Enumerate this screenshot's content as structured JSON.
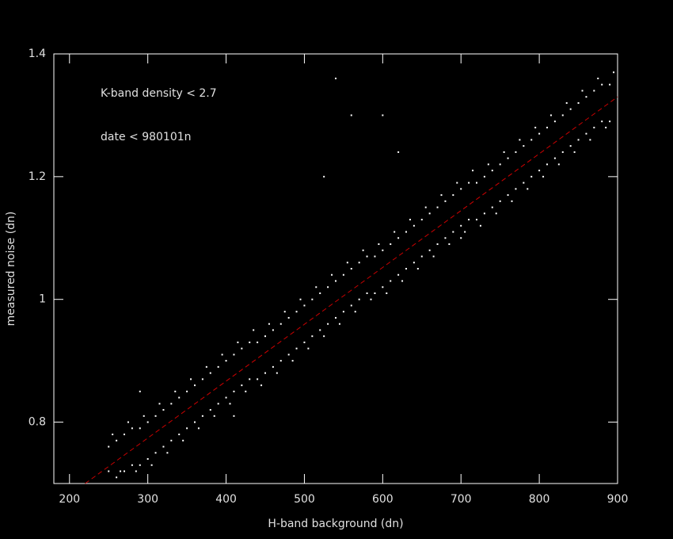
{
  "chart_data": {
    "type": "scatter",
    "xlabel": "H-band background (dn)",
    "ylabel": "measured noise (dn)",
    "annotations": [
      "K-band density < 2.7",
      "date < 980101n"
    ],
    "xlim": [
      180,
      900
    ],
    "ylim": [
      0.7,
      1.4
    ],
    "xticks": [
      200,
      300,
      400,
      500,
      600,
      700,
      800,
      900
    ],
    "yticks": [
      0.8,
      1,
      1.2,
      1.4
    ],
    "fit_line": {
      "x": [
        220,
        900
      ],
      "y": [
        0.7,
        1.33
      ],
      "color": "#cc0000"
    },
    "series": [
      {
        "color": "#ffffff",
        "x": [
          250,
          260,
          270,
          280,
          290,
          300,
          310,
          320,
          330,
          340,
          350,
          360,
          370,
          380,
          390,
          400,
          410,
          420,
          430,
          440,
          450,
          460,
          470,
          480,
          490,
          500,
          510,
          520,
          530,
          540,
          550,
          560,
          570,
          580,
          590,
          600,
          610,
          620,
          630,
          640,
          650,
          660,
          670,
          680,
          690,
          700,
          710,
          720,
          730,
          740,
          750,
          760,
          770,
          780,
          790,
          800,
          810,
          820,
          830,
          840,
          850,
          860,
          870,
          880,
          890
        ],
        "y": [
          0.76,
          0.77,
          0.78,
          0.79,
          0.79,
          0.8,
          0.81,
          0.82,
          0.83,
          0.84,
          0.85,
          0.86,
          0.87,
          0.88,
          0.89,
          0.9,
          0.91,
          0.92,
          0.93,
          0.93,
          0.94,
          0.95,
          0.96,
          0.97,
          0.98,
          0.99,
          1.0,
          1.01,
          1.02,
          1.03,
          1.04,
          1.05,
          1.06,
          1.07,
          1.07,
          1.08,
          1.09,
          1.1,
          1.11,
          1.12,
          1.13,
          1.14,
          1.15,
          1.16,
          1.17,
          1.18,
          1.19,
          1.19,
          1.2,
          1.21,
          1.22,
          1.23,
          1.24,
          1.25,
          1.26,
          1.27,
          1.28,
          1.29,
          1.3,
          1.31,
          1.32,
          1.33,
          1.34,
          1.35,
          1.35
        ]
      },
      {
        "color": "#ffffff",
        "x": [
          250,
          260,
          270,
          280,
          290,
          300,
          310,
          320,
          330,
          340,
          350,
          360,
          370,
          380,
          390,
          400,
          410,
          420,
          430,
          440,
          450,
          460,
          470,
          480,
          490,
          500,
          510,
          520,
          530,
          540,
          550,
          560,
          570,
          580,
          590,
          600,
          610,
          620,
          630,
          640,
          650,
          660,
          670,
          680,
          690,
          700,
          710,
          720,
          730,
          740,
          750,
          760,
          770,
          780,
          790,
          800,
          810,
          820,
          830,
          840,
          850,
          860,
          870,
          880,
          890
        ],
        "y": [
          0.72,
          0.71,
          0.72,
          0.73,
          0.73,
          0.74,
          0.75,
          0.76,
          0.77,
          0.78,
          0.79,
          0.8,
          0.81,
          0.82,
          0.83,
          0.84,
          0.85,
          0.86,
          0.87,
          0.87,
          0.88,
          0.89,
          0.9,
          0.91,
          0.92,
          0.93,
          0.94,
          0.95,
          0.96,
          0.97,
          0.98,
          0.99,
          1.0,
          1.01,
          1.01,
          1.02,
          1.03,
          1.04,
          1.05,
          1.06,
          1.07,
          1.08,
          1.09,
          1.1,
          1.11,
          1.12,
          1.13,
          1.13,
          1.14,
          1.15,
          1.16,
          1.17,
          1.18,
          1.19,
          1.2,
          1.21,
          1.22,
          1.23,
          1.24,
          1.25,
          1.26,
          1.27,
          1.28,
          1.29,
          1.29
        ]
      },
      {
        "color": "#ffffff",
        "x": [
          255,
          265,
          275,
          285,
          295,
          305,
          315,
          325,
          335,
          345,
          355,
          365,
          375,
          385,
          395,
          405,
          415,
          425,
          435,
          445,
          455,
          465,
          475,
          485,
          495,
          505,
          515,
          525,
          535,
          545,
          555,
          565,
          575,
          585,
          595,
          605,
          615,
          625,
          635,
          645,
          655,
          665,
          675,
          685,
          695,
          705,
          715,
          725,
          735,
          745,
          755,
          765,
          775,
          785,
          795,
          805,
          815,
          825,
          835,
          845,
          855,
          865,
          875,
          885,
          895
        ],
        "y": [
          0.78,
          0.72,
          0.8,
          0.72,
          0.81,
          0.73,
          0.83,
          0.75,
          0.85,
          0.77,
          0.87,
          0.79,
          0.89,
          0.81,
          0.91,
          0.83,
          0.93,
          0.85,
          0.95,
          0.86,
          0.96,
          0.88,
          0.98,
          0.9,
          1.0,
          0.92,
          1.02,
          0.94,
          1.04,
          0.96,
          1.06,
          0.98,
          1.08,
          1.0,
          1.09,
          1.01,
          1.11,
          1.03,
          1.13,
          1.05,
          1.15,
          1.07,
          1.17,
          1.09,
          1.19,
          1.11,
          1.21,
          1.12,
          1.22,
          1.14,
          1.24,
          1.16,
          1.26,
          1.18,
          1.28,
          1.2,
          1.3,
          1.22,
          1.32,
          1.24,
          1.34,
          1.26,
          1.36,
          1.28,
          1.37
        ]
      },
      {
        "color": "#ffffff",
        "x": [
          540,
          525,
          600,
          410,
          290,
          700,
          560,
          620
        ],
        "y": [
          1.36,
          1.2,
          1.3,
          0.81,
          0.85,
          1.1,
          1.3,
          1.24
        ]
      }
    ]
  }
}
